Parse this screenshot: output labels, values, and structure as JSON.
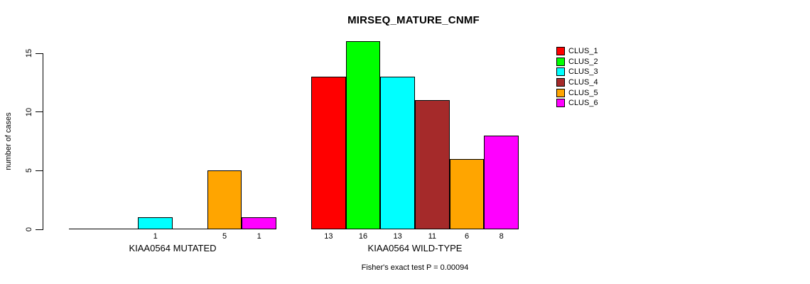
{
  "chart_data": {
    "type": "bar",
    "title": "MIRSEQ_MATURE_CNMF",
    "ylabel": "number of cases",
    "ylim": [
      0,
      16
    ],
    "yticks": [
      0,
      5,
      10,
      15
    ],
    "grid": false,
    "legend_position": "top-right",
    "series_labels": [
      "CLUS_1",
      "CLUS_2",
      "CLUS_3",
      "CLUS_4",
      "CLUS_5",
      "CLUS_6"
    ],
    "colors": [
      "#FF0000",
      "#00FF00",
      "#00FFFF",
      "#A52A2A",
      "#FFA500",
      "#FF00FF"
    ],
    "groups": [
      {
        "label": "KIAA0564 MUTATED",
        "values": [
          0,
          0,
          1,
          0,
          5,
          1
        ]
      },
      {
        "label": "KIAA0564 WILD-TYPE",
        "values": [
          13,
          16,
          13,
          11,
          6,
          8
        ]
      }
    ],
    "bar_value_labels": "shown under each non-zero bar",
    "annotation": "Fisher's exact test P = 0.00094"
  }
}
